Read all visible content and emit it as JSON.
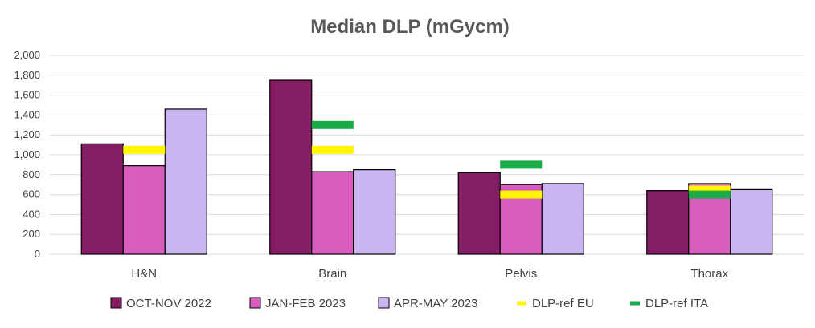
{
  "chart_data": {
    "type": "bar",
    "title": "Median DLP (mGycm)",
    "categories": [
      "H&N",
      "Brain",
      "Pelvis",
      "Thorax"
    ],
    "ylim": [
      0,
      2000
    ],
    "yticks": [
      0,
      200,
      400,
      600,
      800,
      1000,
      1200,
      1400,
      1600,
      1800,
      2000
    ],
    "ytick_labels": [
      "0",
      "200",
      "400",
      "600",
      "800",
      "1,000",
      "1,200",
      "1,400",
      "1,600",
      "1,800",
      "2,000"
    ],
    "grid": true,
    "legend_position": "bottom",
    "series": [
      {
        "name": "OCT-NOV 2022",
        "values": [
          1110,
          1750,
          820,
          640
        ],
        "color": "#841C66"
      },
      {
        "name": "JAN-FEB 2023",
        "values": [
          890,
          830,
          700,
          710
        ],
        "color": "#D95CBF"
      },
      {
        "name": "APR-MAY 2023",
        "values": [
          1460,
          850,
          710,
          650
        ],
        "color": "#C9B5F0"
      }
    ],
    "reference_lines": [
      {
        "name": "DLP-ref EU",
        "values": [
          1050,
          1050,
          600,
          650
        ],
        "color": "#FFF500"
      },
      {
        "name": "DLP-ref ITA",
        "values": [
          null,
          1300,
          900,
          600
        ],
        "color": "#1AAA48"
      }
    ]
  }
}
